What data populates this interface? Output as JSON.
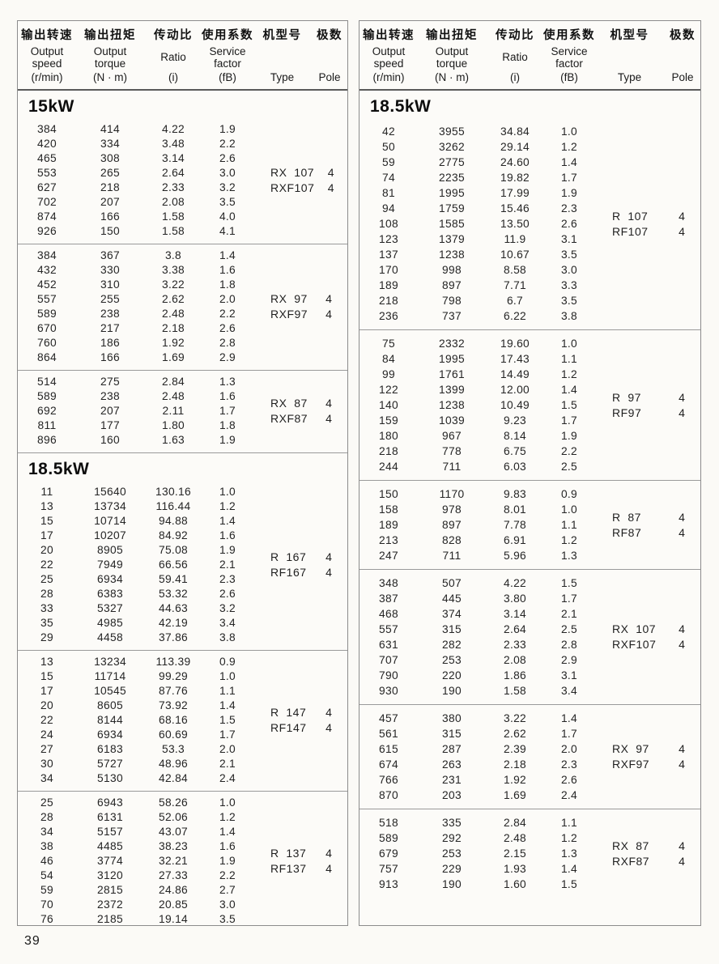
{
  "page": {
    "number": "39"
  },
  "header": {
    "cols": [
      {
        "zh": "输出转速",
        "lines": [
          "Output",
          "speed"
        ],
        "unit": "(r/min)"
      },
      {
        "zh": "输出扭矩",
        "lines": [
          "Output",
          "torque"
        ],
        "unit": "(N · m)"
      },
      {
        "zh": "传动比",
        "lines": [
          "Ratio"
        ],
        "unit": "(i)"
      },
      {
        "zh": "使用系数",
        "lines": [
          "Service",
          "factor"
        ],
        "unit": "(fB)"
      },
      {
        "zh": "机型号",
        "lines": [],
        "unit": "Type"
      },
      {
        "zh": "极数",
        "lines": [],
        "unit": "Pole"
      }
    ]
  },
  "tables": [
    {
      "sections": [
        {
          "title": "15kW",
          "blocks": [
            {
              "types": [
                "RX  107",
                "RXF107"
              ],
              "poles": [
                "4",
                "4"
              ],
              "rows": [
                [
                  "384",
                  "414",
                  "4.22",
                  "1.9"
                ],
                [
                  "420",
                  "334",
                  "3.48",
                  "2.2"
                ],
                [
                  "465",
                  "308",
                  "3.14",
                  "2.6"
                ],
                [
                  "553",
                  "265",
                  "2.64",
                  "3.0"
                ],
                [
                  "627",
                  "218",
                  "2.33",
                  "3.2"
                ],
                [
                  "702",
                  "207",
                  "2.08",
                  "3.5"
                ],
                [
                  "874",
                  "166",
                  "1.58",
                  "4.0"
                ],
                [
                  "926",
                  "150",
                  "1.58",
                  "4.1"
                ]
              ]
            },
            {
              "types": [
                "RX  97",
                "RXF97"
              ],
              "poles": [
                "4",
                "4"
              ],
              "rows": [
                [
                  "384",
                  "367",
                  "3.8",
                  "1.4"
                ],
                [
                  "432",
                  "330",
                  "3.38",
                  "1.6"
                ],
                [
                  "452",
                  "310",
                  "3.22",
                  "1.8"
                ],
                [
                  "557",
                  "255",
                  "2.62",
                  "2.0"
                ],
                [
                  "589",
                  "238",
                  "2.48",
                  "2.2"
                ],
                [
                  "670",
                  "217",
                  "2.18",
                  "2.6"
                ],
                [
                  "760",
                  "186",
                  "1.92",
                  "2.8"
                ],
                [
                  "864",
                  "166",
                  "1.69",
                  "2.9"
                ]
              ]
            },
            {
              "types": [
                "RX  87",
                "RXF87"
              ],
              "poles": [
                "4",
                "4"
              ],
              "rows": [
                [
                  "514",
                  "275",
                  "2.84",
                  "1.3"
                ],
                [
                  "589",
                  "238",
                  "2.48",
                  "1.6"
                ],
                [
                  "692",
                  "207",
                  "2.11",
                  "1.7"
                ],
                [
                  "811",
                  "177",
                  "1.80",
                  "1.8"
                ],
                [
                  "896",
                  "160",
                  "1.63",
                  "1.9"
                ]
              ]
            }
          ]
        },
        {
          "title": "18.5kW",
          "blocks": [
            {
              "types": [
                "R  167",
                "RF167"
              ],
              "poles": [
                "4",
                "4"
              ],
              "rows": [
                [
                  "11",
                  "15640",
                  "130.16",
                  "1.0"
                ],
                [
                  "13",
                  "13734",
                  "116.44",
                  "1.2"
                ],
                [
                  "15",
                  "10714",
                  "94.88",
                  "1.4"
                ],
                [
                  "17",
                  "10207",
                  "84.92",
                  "1.6"
                ],
                [
                  "20",
                  "8905",
                  "75.08",
                  "1.9"
                ],
                [
                  "22",
                  "7949",
                  "66.56",
                  "2.1"
                ],
                [
                  "25",
                  "6934",
                  "59.41",
                  "2.3"
                ],
                [
                  "28",
                  "6383",
                  "53.32",
                  "2.6"
                ],
                [
                  "33",
                  "5327",
                  "44.63",
                  "3.2"
                ],
                [
                  "35",
                  "4985",
                  "42.19",
                  "3.4"
                ],
                [
                  "29",
                  "4458",
                  "37.86",
                  "3.8"
                ]
              ]
            },
            {
              "types": [
                "R  147",
                "RF147"
              ],
              "poles": [
                "4",
                "4"
              ],
              "rows": [
                [
                  "13",
                  "13234",
                  "113.39",
                  "0.9"
                ],
                [
                  "15",
                  "11714",
                  "99.29",
                  "1.0"
                ],
                [
                  "17",
                  "10545",
                  "87.76",
                  "1.1"
                ],
                [
                  "20",
                  "8605",
                  "73.92",
                  "1.4"
                ],
                [
                  "22",
                  "8144",
                  "68.16",
                  "1.5"
                ],
                [
                  "24",
                  "6934",
                  "60.69",
                  "1.7"
                ],
                [
                  "27",
                  "6183",
                  "53.3",
                  "2.0"
                ],
                [
                  "30",
                  "5727",
                  "48.96",
                  "2.1"
                ],
                [
                  "34",
                  "5130",
                  "42.84",
                  "2.4"
                ]
              ]
            },
            {
              "types": [
                "R  137",
                "RF137"
              ],
              "poles": [
                "4",
                "4"
              ],
              "rows": [
                [
                  "25",
                  "6943",
                  "58.26",
                  "1.0"
                ],
                [
                  "28",
                  "6131",
                  "52.06",
                  "1.2"
                ],
                [
                  "34",
                  "5157",
                  "43.07",
                  "1.4"
                ],
                [
                  "38",
                  "4485",
                  "38.23",
                  "1.6"
                ],
                [
                  "46",
                  "3774",
                  "32.21",
                  "1.9"
                ],
                [
                  "54",
                  "3120",
                  "27.33",
                  "2.2"
                ],
                [
                  "59",
                  "2815",
                  "24.86",
                  "2.7"
                ],
                [
                  "70",
                  "2372",
                  "20.85",
                  "3.0"
                ],
                [
                  "76",
                  "2185",
                  "19.14",
                  "3.5"
                ]
              ]
            }
          ]
        }
      ]
    },
    {
      "sections": [
        {
          "title": "18.5kW",
          "blocks": [
            {
              "types": [
                "R  107",
                "RF107"
              ],
              "poles": [
                "4",
                "4"
              ],
              "rows": [
                [
                  "42",
                  "3955",
                  "34.84",
                  "1.0"
                ],
                [
                  "50",
                  "3262",
                  "29.14",
                  "1.2"
                ],
                [
                  "59",
                  "2775",
                  "24.60",
                  "1.4"
                ],
                [
                  "74",
                  "2235",
                  "19.82",
                  "1.7"
                ],
                [
                  "81",
                  "1995",
                  "17.99",
                  "1.9"
                ],
                [
                  "94",
                  "1759",
                  "15.46",
                  "2.3"
                ],
                [
                  "108",
                  "1585",
                  "13.50",
                  "2.6"
                ],
                [
                  "123",
                  "1379",
                  "11.9",
                  "3.1"
                ],
                [
                  "137",
                  "1238",
                  "10.67",
                  "3.5"
                ],
                [
                  "170",
                  "998",
                  "8.58",
                  "3.0"
                ],
                [
                  "189",
                  "897",
                  "7.71",
                  "3.3"
                ],
                [
                  "218",
                  "798",
                  "6.7",
                  "3.5"
                ],
                [
                  "236",
                  "737",
                  "6.22",
                  "3.8"
                ]
              ]
            },
            {
              "types": [
                "R  97",
                "RF97"
              ],
              "poles": [
                "4",
                "4"
              ],
              "rows": [
                [
                  "75",
                  "2332",
                  "19.60",
                  "1.0"
                ],
                [
                  "84",
                  "1995",
                  "17.43",
                  "1.1"
                ],
                [
                  "99",
                  "1761",
                  "14.49",
                  "1.2"
                ],
                [
                  "122",
                  "1399",
                  "12.00",
                  "1.4"
                ],
                [
                  "140",
                  "1238",
                  "10.49",
                  "1.5"
                ],
                [
                  "159",
                  "1039",
                  "9.23",
                  "1.7"
                ],
                [
                  "180",
                  "967",
                  "8.14",
                  "1.9"
                ],
                [
                  "218",
                  "778",
                  "6.75",
                  "2.2"
                ],
                [
                  "244",
                  "711",
                  "6.03",
                  "2.5"
                ]
              ]
            },
            {
              "types": [
                "R  87",
                "RF87"
              ],
              "poles": [
                "4",
                "4"
              ],
              "rows": [
                [
                  "150",
                  "1170",
                  "9.83",
                  "0.9"
                ],
                [
                  "158",
                  "978",
                  "8.01",
                  "1.0"
                ],
                [
                  "189",
                  "897",
                  "7.78",
                  "1.1"
                ],
                [
                  "213",
                  "828",
                  "6.91",
                  "1.2"
                ],
                [
                  "247",
                  "711",
                  "5.96",
                  "1.3"
                ]
              ]
            },
            {
              "types": [
                "RX  107",
                "RXF107"
              ],
              "poles": [
                "4",
                "4"
              ],
              "rows": [
                [
                  "348",
                  "507",
                  "4.22",
                  "1.5"
                ],
                [
                  "387",
                  "445",
                  "3.80",
                  "1.7"
                ],
                [
                  "468",
                  "374",
                  "3.14",
                  "2.1"
                ],
                [
                  "557",
                  "315",
                  "2.64",
                  "2.5"
                ],
                [
                  "631",
                  "282",
                  "2.33",
                  "2.8"
                ],
                [
                  "707",
                  "253",
                  "2.08",
                  "2.9"
                ],
                [
                  "790",
                  "220",
                  "1.86",
                  "3.1"
                ],
                [
                  "930",
                  "190",
                  "1.58",
                  "3.4"
                ]
              ]
            },
            {
              "types": [
                "RX  97",
                "RXF97"
              ],
              "poles": [
                "4",
                "4"
              ],
              "rows": [
                [
                  "457",
                  "380",
                  "3.22",
                  "1.4"
                ],
                [
                  "561",
                  "315",
                  "2.62",
                  "1.7"
                ],
                [
                  "615",
                  "287",
                  "2.39",
                  "2.0"
                ],
                [
                  "674",
                  "263",
                  "2.18",
                  "2.3"
                ],
                [
                  "766",
                  "231",
                  "1.92",
                  "2.6"
                ],
                [
                  "870",
                  "203",
                  "1.69",
                  "2.4"
                ]
              ]
            },
            {
              "types": [
                "RX  87",
                "RXF87"
              ],
              "poles": [
                "4",
                "4"
              ],
              "rows": [
                [
                  "518",
                  "335",
                  "2.84",
                  "1.1"
                ],
                [
                  "589",
                  "292",
                  "2.48",
                  "1.2"
                ],
                [
                  "679",
                  "253",
                  "2.15",
                  "1.3"
                ],
                [
                  "757",
                  "229",
                  "1.93",
                  "1.4"
                ],
                [
                  "913",
                  "190",
                  "1.60",
                  "1.5"
                ]
              ]
            }
          ]
        }
      ]
    }
  ]
}
